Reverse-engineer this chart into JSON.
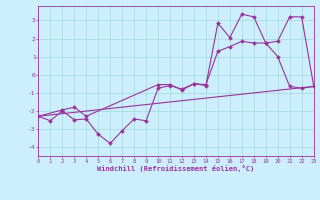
{
  "xlabel": "Windchill (Refroidissement éolien,°C)",
  "bg_color": "#cceeff",
  "grid_color": "#aadddd",
  "line_color": "#993399",
  "line1_x": [
    0,
    1,
    2,
    3,
    4,
    5,
    6,
    7,
    8,
    9,
    10,
    11,
    12,
    13,
    14,
    15,
    16,
    17,
    18,
    19,
    20,
    21,
    22,
    23
  ],
  "line1_y": [
    -2.3,
    -2.55,
    -2.0,
    -2.5,
    -2.45,
    -3.3,
    -3.8,
    -3.1,
    -2.45,
    -2.55,
    -0.75,
    -0.6,
    -0.8,
    -0.5,
    -0.6,
    2.85,
    2.05,
    3.35,
    3.2,
    1.75,
    1.0,
    -0.65,
    -0.75,
    -0.65
  ],
  "line2_x": [
    0,
    23
  ],
  "line2_y": [
    -2.3,
    -0.65
  ],
  "line3_x": [
    0,
    2,
    3,
    4,
    10,
    11,
    12,
    13,
    14,
    15,
    16,
    17,
    18,
    19,
    20,
    21,
    22,
    23
  ],
  "line3_y": [
    -2.3,
    -1.95,
    -1.8,
    -2.3,
    -0.55,
    -0.55,
    -0.85,
    -0.5,
    -0.55,
    1.3,
    1.55,
    1.85,
    1.75,
    1.75,
    1.85,
    3.2,
    3.2,
    -0.6
  ],
  "xlim": [
    0,
    23
  ],
  "ylim": [
    -4.5,
    3.8
  ],
  "yticks": [
    -4,
    -3,
    -2,
    -1,
    0,
    1,
    2,
    3
  ],
  "xticks": [
    0,
    1,
    2,
    3,
    4,
    5,
    6,
    7,
    8,
    9,
    10,
    11,
    12,
    13,
    14,
    15,
    16,
    17,
    18,
    19,
    20,
    21,
    22,
    23
  ]
}
